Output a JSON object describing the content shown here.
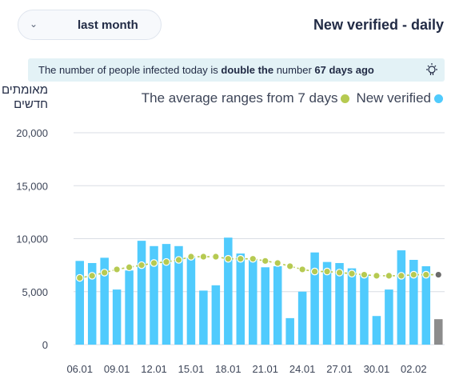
{
  "period_selector": {
    "label": "last month"
  },
  "title": "New verified - daily",
  "banner": {
    "text_before": "The number of people infected today is ",
    "bold_1": "double the",
    "text_middle": " number ",
    "bold_2": "67 days ago"
  },
  "y_axis_title_lines": [
    "מאומתים",
    "חדשים"
  ],
  "legend": {
    "average": "The average ranges from 7 days",
    "daily": "New verified"
  },
  "colors": {
    "bar": "#50cbfd",
    "bar_partial": "#8c8c8c",
    "average_line": "#b6ca51",
    "average_last": "#6b6b6b",
    "grid": "#d9dde4"
  },
  "chart_data": {
    "type": "bar",
    "x": [
      "06.01",
      "07.01",
      "08.01",
      "09.01",
      "10.01",
      "11.01",
      "12.01",
      "13.01",
      "14.01",
      "15.01",
      "16.01",
      "17.01",
      "18.01",
      "19.01",
      "20.01",
      "21.01",
      "22.01",
      "23.01",
      "24.01",
      "25.01",
      "26.01",
      "27.01",
      "28.01",
      "29.01",
      "30.01",
      "31.01",
      "01.02",
      "02.02",
      "03.02",
      "04.02"
    ],
    "x_tick_labels": [
      "06.01",
      "09.01",
      "12.01",
      "15.01",
      "18.01",
      "21.01",
      "24.01",
      "27.01",
      "30.01",
      "02.02"
    ],
    "ylim": [
      0,
      20000
    ],
    "y_ticks": [
      0,
      5000,
      10000,
      15000,
      20000
    ],
    "y_tick_labels": [
      "0",
      "5,000",
      "10,000",
      "15,000",
      "20,000"
    ],
    "grid": true,
    "legend_position": "top-right",
    "series": [
      {
        "name": "New verified",
        "type": "bar",
        "values": [
          7900,
          7700,
          8200,
          5200,
          7000,
          9800,
          9300,
          9500,
          9300,
          8200,
          5100,
          5600,
          10100,
          8600,
          8000,
          7300,
          7400,
          2500,
          5000,
          8700,
          7800,
          7700,
          7200,
          6600,
          2700,
          5200,
          8900,
          8000,
          7400,
          2400
        ],
        "partial_last": true
      },
      {
        "name": "The average ranges from 7 days",
        "type": "line",
        "values": [
          6300,
          6500,
          6800,
          7100,
          7300,
          7500,
          7700,
          7800,
          8000,
          8300,
          8300,
          8300,
          8100,
          8100,
          8100,
          7900,
          7700,
          7400,
          7100,
          6900,
          6900,
          6800,
          6700,
          6600,
          6500,
          6500,
          6500,
          6600,
          6600,
          6600
        ]
      }
    ]
  }
}
